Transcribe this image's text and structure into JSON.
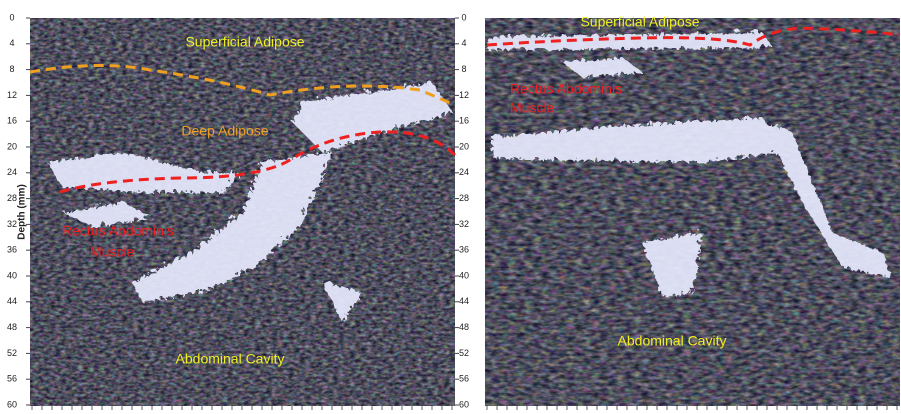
{
  "left_panel": {
    "axis_label": "Depth (mm)",
    "ticks": [
      0,
      4,
      8,
      12,
      16,
      20,
      24,
      28,
      32,
      36,
      40,
      44,
      48,
      52,
      56,
      60
    ],
    "labels": {
      "superficial": "Superficial Adipose",
      "deep": "Deep Adipose",
      "muscle_1": "Rectus Abdominis",
      "muscle_2": "Muscle",
      "cavity": "Abdominal Cavity"
    }
  },
  "right_panel": {
    "labels": {
      "superficial": "Superficial Adipose",
      "muscle_1": "Rectus Abdominis",
      "muscle_2": "Muscle",
      "cavity": "Abdominal Cavity"
    }
  }
}
